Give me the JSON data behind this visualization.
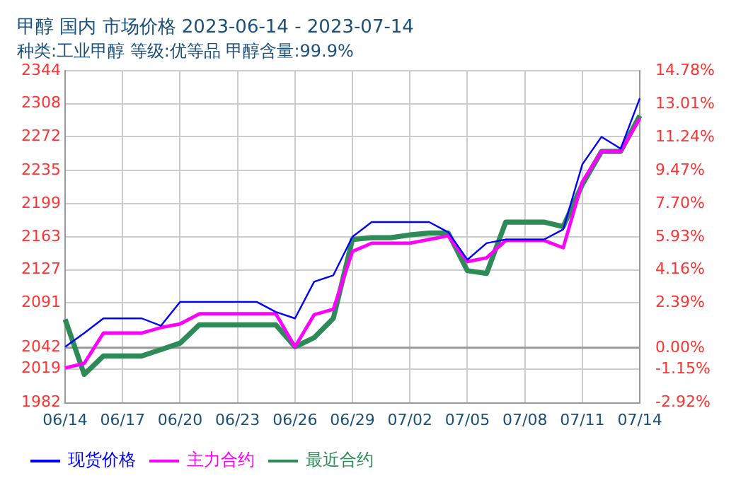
{
  "chart_data": {
    "type": "line",
    "title": "甲醇 国内 市场价格 2023-06-14 - 2023-07-14",
    "subtitle": "种类:工业甲醇 等级:优等品 甲醇含量:99.9%",
    "categories": [
      "06/14",
      null,
      null,
      "06/17",
      null,
      null,
      "06/20",
      null,
      null,
      "06/23",
      null,
      null,
      "06/26",
      null,
      null,
      "06/29",
      null,
      null,
      "07/02",
      null,
      null,
      "07/05",
      null,
      null,
      "07/08",
      null,
      null,
      "07/11",
      null,
      null,
      "07/14"
    ],
    "series": [
      {
        "name": "现货价格",
        "color": "#0000ff",
        "values": [
          2043,
          2058,
          2074,
          2074,
          2074,
          2066,
          2092,
          2092,
          2092,
          2092,
          2092,
          2081,
          2074,
          2114,
          2121,
          2163,
          2179,
          2179,
          2179,
          2179,
          2168,
          2138,
          2156,
          2160,
          2160,
          2160,
          2171,
          2242,
          2272,
          2259,
          2314
        ]
      },
      {
        "name": "主力合约",
        "color": "#ff00ff",
        "values": [
          2020,
          2025,
          2058,
          2058,
          2058,
          2064,
          2068,
          2079,
          2079,
          2079,
          2079,
          2079,
          2043,
          2078,
          2084,
          2147,
          2156,
          2156,
          2156,
          2160,
          2164,
          2136,
          2140,
          2159,
          2159,
          2159,
          2151,
          2223,
          2256,
          2256,
          2292
        ]
      },
      {
        "name": "最近合约",
        "color": "#2e8b57",
        "values": [
          2073,
          2013,
          2033,
          2033,
          2033,
          2040,
          2047,
          2067,
          2067,
          2067,
          2067,
          2067,
          2043,
          2053,
          2074,
          2160,
          2162,
          2162,
          2165,
          2167,
          2167,
          2126,
          2123,
          2179,
          2179,
          2179,
          2174,
          2220,
          2256,
          2256,
          2295
        ]
      }
    ],
    "ylim": [
      1982,
      2344
    ],
    "yticks": [
      1982,
      2019,
      2042,
      2091,
      2127,
      2163,
      2199,
      2235,
      2272,
      2308,
      2344
    ],
    "y2lim": [
      -2.92,
      14.78
    ],
    "y2ticks": [
      {
        "value": -2.92,
        "label": "-2.92%"
      },
      {
        "value": -1.15,
        "label": "-1.15%"
      },
      {
        "value": 0,
        "label": "0.00%"
      },
      {
        "value": 2.39,
        "label": "2.39%"
      },
      {
        "value": 4.16,
        "label": "4.16%"
      },
      {
        "value": 5.93,
        "label": "5.93%"
      },
      {
        "value": 7.7,
        "label": "7.70%"
      },
      {
        "value": 9.47,
        "label": "9.47%"
      },
      {
        "value": 11.24,
        "label": "11.24%"
      },
      {
        "value": 13.01,
        "label": "13.01%"
      },
      {
        "value": 14.78,
        "label": "14.78%"
      }
    ],
    "ref_lines": [
      {
        "axis": "y",
        "value": 2042,
        "color": "#999999"
      }
    ],
    "grid": true,
    "legend": "bottom",
    "marker": "none",
    "line_style": "solid"
  }
}
